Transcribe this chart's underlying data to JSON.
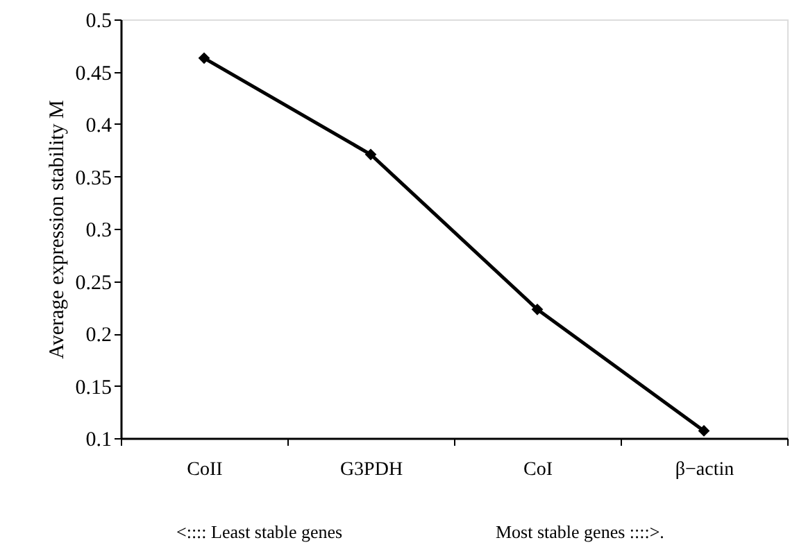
{
  "chart_data": {
    "type": "line",
    "ylabel": "Average expression stability M",
    "categories": [
      "CoII",
      "G3PDH",
      "CoI",
      "β−actin"
    ],
    "series": [
      {
        "color": "#000000",
        "values": [
          0.463,
          0.371,
          0.223,
          0.107
        ]
      }
    ],
    "ylim": [
      0.1,
      0.5
    ],
    "yticks": [
      0.1,
      0.15,
      0.2,
      0.25,
      0.3,
      0.35,
      0.4,
      0.45,
      0.5
    ],
    "marker": "diamond",
    "line_style": "solid",
    "grid": false,
    "annotations": [
      "<:::: Least  stable genes",
      "Most stable genes  ::::>."
    ]
  }
}
